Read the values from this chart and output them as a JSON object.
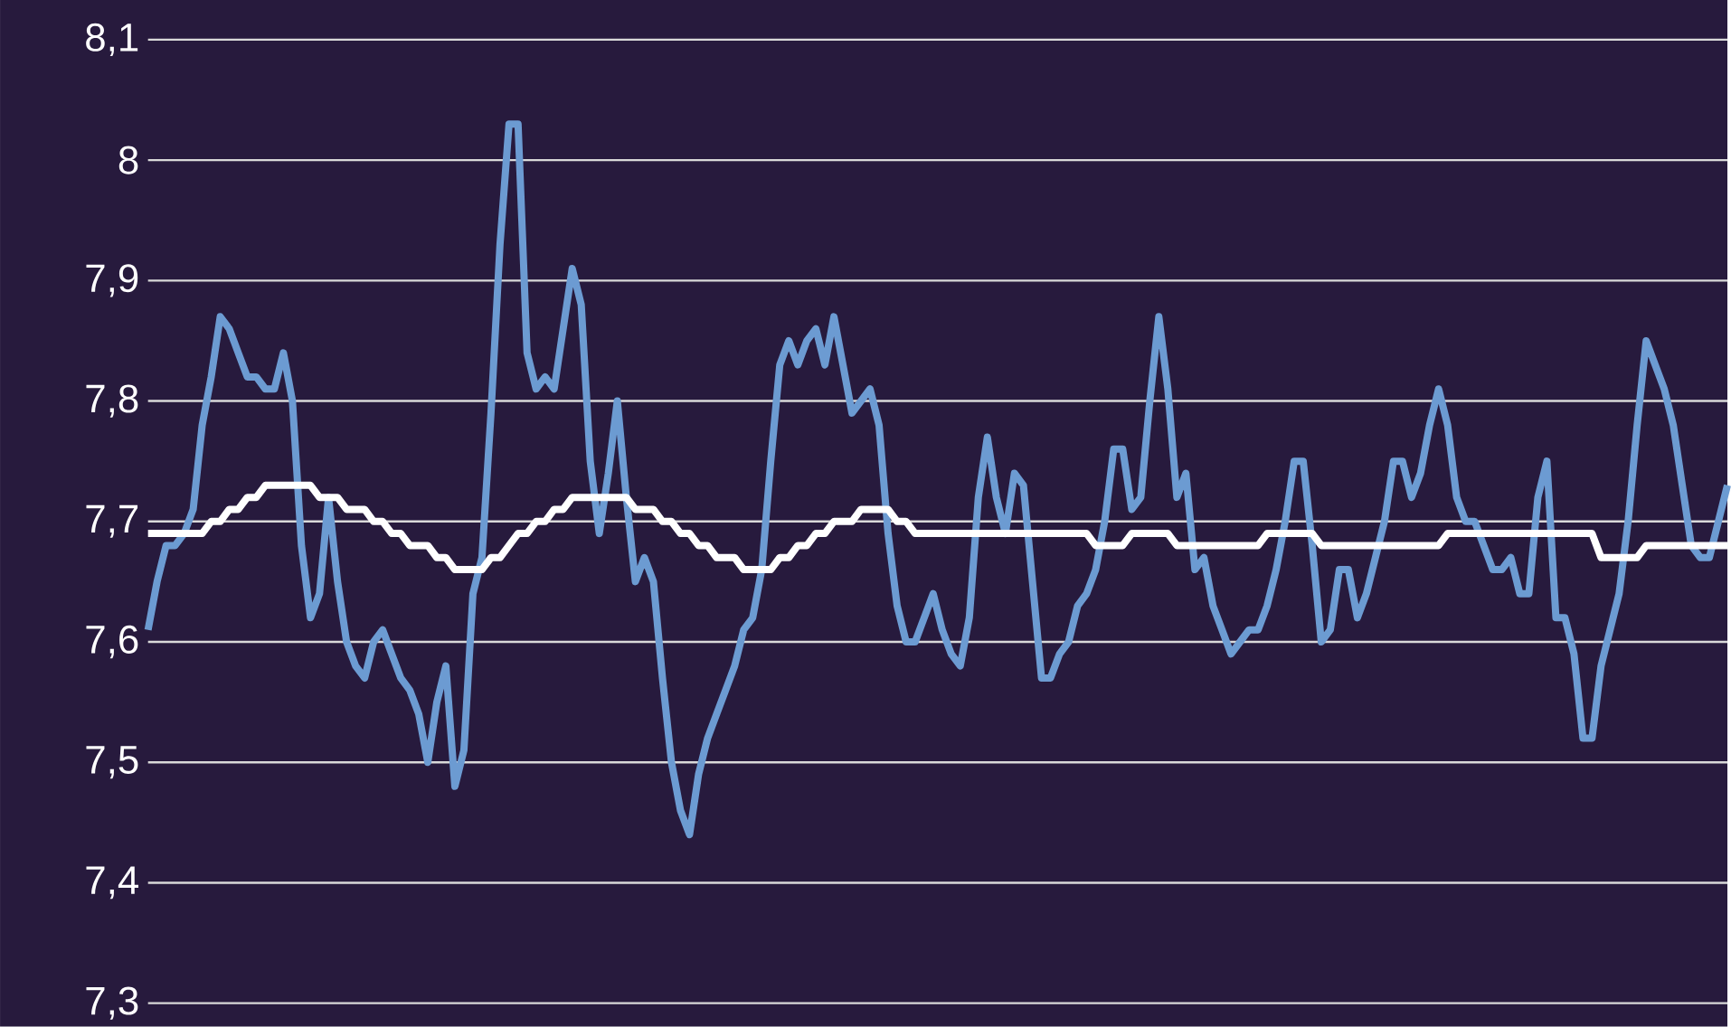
{
  "chart_data": {
    "type": "line",
    "categories": [
      null,
      null,
      null,
      null,
      null,
      null,
      null,
      null,
      null,
      null,
      null,
      null,
      null,
      null,
      null,
      null,
      null,
      null,
      null,
      null,
      null,
      null,
      null,
      null,
      null,
      null,
      null,
      null,
      null,
      null,
      null,
      null,
      null,
      null,
      null,
      null,
      null,
      null,
      null,
      null,
      null,
      null,
      null,
      null,
      null,
      null,
      null,
      null,
      null,
      null,
      null,
      null,
      null,
      null,
      null,
      null,
      null,
      null,
      null,
      null,
      null,
      null,
      null,
      null,
      null,
      null,
      null,
      null,
      null,
      null,
      null,
      null,
      null,
      null,
      null,
      null,
      null,
      null,
      null,
      null,
      null,
      null,
      null,
      null,
      null,
      null,
      null,
      null,
      null,
      null,
      null,
      null,
      null,
      null,
      null,
      null,
      null,
      null,
      null,
      null,
      null,
      null,
      null,
      null,
      null,
      null,
      null,
      null,
      null,
      null,
      null,
      null,
      null,
      null,
      null,
      null,
      null,
      null,
      null,
      null,
      null,
      null,
      null,
      null,
      null,
      null,
      null,
      null,
      null,
      null,
      null,
      null,
      null,
      null,
      null,
      null,
      null,
      null,
      null,
      null,
      null,
      null,
      null,
      null,
      null,
      null,
      null,
      null,
      null,
      null,
      null,
      null,
      null,
      null,
      null,
      null,
      null,
      null,
      null,
      null,
      null,
      null,
      null,
      null,
      null,
      null,
      null,
      null,
      null,
      null,
      null,
      null,
      null,
      null,
      null,
      null
    ],
    "ylim": [
      7.3,
      8.1
    ],
    "yticks": [
      {
        "value": 7.3,
        "label": "7,3"
      },
      {
        "value": 7.4,
        "label": "7,4"
      },
      {
        "value": 7.5,
        "label": "7,5"
      },
      {
        "value": 7.6,
        "label": "7,6"
      },
      {
        "value": 7.7,
        "label": "7,7"
      },
      {
        "value": 7.8,
        "label": "7,8"
      },
      {
        "value": 7.9,
        "label": "7,9"
      },
      {
        "value": 8.0,
        "label": "8"
      },
      {
        "value": 8.1,
        "label": "8,1"
      }
    ],
    "grid": "y",
    "tick_labels": "y",
    "marker": "none",
    "line_style": "solid",
    "series": [
      {
        "color": "#6c9bd2",
        "values": [
          7.61,
          7.65,
          7.68,
          7.68,
          7.69,
          7.71,
          7.78,
          7.82,
          7.87,
          7.86,
          7.84,
          7.82,
          7.82,
          7.81,
          7.81,
          7.84,
          7.8,
          7.68,
          7.62,
          7.64,
          7.72,
          7.65,
          7.6,
          7.58,
          7.57,
          7.6,
          7.61,
          7.59,
          7.57,
          7.56,
          7.54,
          7.5,
          7.55,
          7.58,
          7.48,
          7.51,
          7.64,
          7.67,
          7.79,
          7.93,
          8.03,
          8.03,
          7.84,
          7.81,
          7.82,
          7.81,
          7.86,
          7.91,
          7.88,
          7.75,
          7.69,
          7.74,
          7.8,
          7.72,
          7.65,
          7.67,
          7.65,
          7.57,
          7.5,
          7.46,
          7.44,
          7.49,
          7.52,
          7.54,
          7.56,
          7.58,
          7.61,
          7.62,
          7.66,
          7.75,
          7.83,
          7.85,
          7.83,
          7.85,
          7.86,
          7.83,
          7.87,
          7.83,
          7.79,
          7.8,
          7.81,
          7.78,
          7.69,
          7.63,
          7.6,
          7.6,
          7.62,
          7.64,
          7.61,
          7.59,
          7.58,
          7.62,
          7.72,
          7.77,
          7.72,
          7.69,
          7.74,
          7.73,
          7.65,
          7.57,
          7.57,
          7.59,
          7.6,
          7.63,
          7.64,
          7.66,
          7.7,
          7.76,
          7.76,
          7.71,
          7.72,
          7.8,
          7.87,
          7.81,
          7.72,
          7.74,
          7.66,
          7.67,
          7.63,
          7.61,
          7.59,
          7.6,
          7.61,
          7.61,
          7.63,
          7.66,
          7.7,
          7.75,
          7.75,
          7.68,
          7.6,
          7.61,
          7.66,
          7.66,
          7.62,
          7.64,
          7.67,
          7.7,
          7.75,
          7.75,
          7.72,
          7.74,
          7.78,
          7.81,
          7.78,
          7.72,
          7.7,
          7.7,
          7.68,
          7.66,
          7.66,
          7.67,
          7.64,
          7.64,
          7.72,
          7.75,
          7.62,
          7.62,
          7.59,
          7.52,
          7.52,
          7.58,
          7.61,
          7.64,
          7.7,
          7.78,
          7.85,
          7.83,
          7.81,
          7.78,
          7.73,
          7.68,
          7.67,
          7.67,
          7.7,
          7.73
        ]
      },
      {
        "color": "#ffffff",
        "values": [
          7.69,
          7.69,
          7.69,
          7.69,
          7.69,
          7.69,
          7.69,
          7.7,
          7.7,
          7.71,
          7.71,
          7.72,
          7.72,
          7.73,
          7.73,
          7.73,
          7.73,
          7.73,
          7.73,
          7.72,
          7.72,
          7.72,
          7.71,
          7.71,
          7.71,
          7.7,
          7.7,
          7.69,
          7.69,
          7.68,
          7.68,
          7.68,
          7.67,
          7.67,
          7.66,
          7.66,
          7.66,
          7.66,
          7.67,
          7.67,
          7.68,
          7.69,
          7.69,
          7.7,
          7.7,
          7.71,
          7.71,
          7.72,
          7.72,
          7.72,
          7.72,
          7.72,
          7.72,
          7.72,
          7.71,
          7.71,
          7.71,
          7.7,
          7.7,
          7.69,
          7.69,
          7.68,
          7.68,
          7.67,
          7.67,
          7.67,
          7.66,
          7.66,
          7.66,
          7.66,
          7.67,
          7.67,
          7.68,
          7.68,
          7.69,
          7.69,
          7.7,
          7.7,
          7.7,
          7.71,
          7.71,
          7.71,
          7.71,
          7.7,
          7.7,
          7.69,
          7.69,
          7.69,
          7.69,
          7.69,
          7.69,
          7.69,
          7.69,
          7.69,
          7.69,
          7.69,
          7.69,
          7.69,
          7.69,
          7.69,
          7.69,
          7.69,
          7.69,
          7.69,
          7.69,
          7.68,
          7.68,
          7.68,
          7.68,
          7.69,
          7.69,
          7.69,
          7.69,
          7.69,
          7.68,
          7.68,
          7.68,
          7.68,
          7.68,
          7.68,
          7.68,
          7.68,
          7.68,
          7.68,
          7.69,
          7.69,
          7.69,
          7.69,
          7.69,
          7.69,
          7.68,
          7.68,
          7.68,
          7.68,
          7.68,
          7.68,
          7.68,
          7.68,
          7.68,
          7.68,
          7.68,
          7.68,
          7.68,
          7.68,
          7.69,
          7.69,
          7.69,
          7.69,
          7.69,
          7.69,
          7.69,
          7.69,
          7.69,
          7.69,
          7.69,
          7.69,
          7.69,
          7.69,
          7.69,
          7.69,
          7.69,
          7.67,
          7.67,
          7.67,
          7.67,
          7.67,
          7.68,
          7.68,
          7.68,
          7.68,
          7.68,
          7.68,
          7.68,
          7.68,
          7.68,
          7.68
        ]
      }
    ]
  }
}
